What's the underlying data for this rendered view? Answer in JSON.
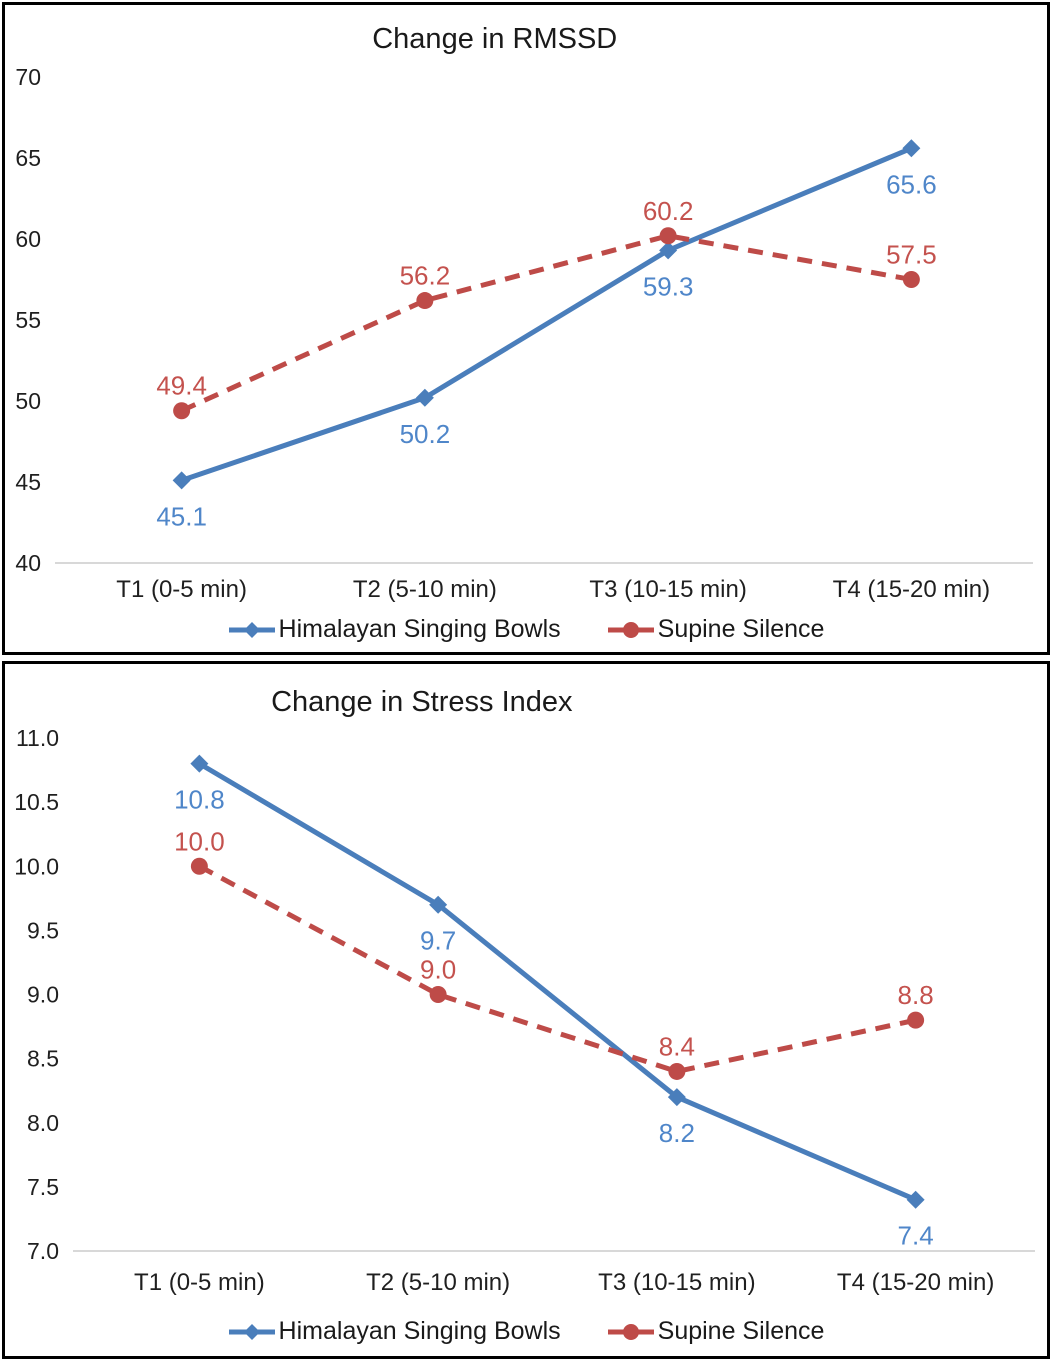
{
  "style": {
    "background": "#FFFFFF",
    "panel_border_color": "#000000",
    "gridline_color": "#D8D8D8",
    "axis_text_color": "#1F1F1F",
    "title_color": "#1A1A1A"
  },
  "chart_data": [
    {
      "type": "line",
      "title": "Change in RMSSD",
      "categories": [
        "T1 (0-5 min)",
        "T2 (5-10 min)",
        "T3 (10-15 min)",
        "T4 (15-20 min)"
      ],
      "series": [
        {
          "name": "Himalayan Singing Bowls",
          "values": [
            45.1,
            50.2,
            59.3,
            65.6
          ],
          "color": "#4A7EBB",
          "label_color": "#4F86C9",
          "marker": "diamond",
          "line_style": "solid",
          "label_position": "below"
        },
        {
          "name": "Supine Silence",
          "values": [
            49.4,
            56.2,
            60.2,
            57.5
          ],
          "color": "#BE4B48",
          "label_color": "#C4524E",
          "marker": "circle",
          "line_style": "dashed",
          "label_position": "above"
        }
      ],
      "ylim": [
        40,
        70
      ],
      "ytick_step": 5,
      "ytick_format": "int",
      "grid": "baseline-only",
      "legend_position": "bottom"
    },
    {
      "type": "line",
      "title": "Change in Stress Index",
      "categories": [
        "T1 (0-5 min)",
        "T2 (5-10 min)",
        "T3 (10-15 min)",
        "T4 (15-20 min)"
      ],
      "series": [
        {
          "name": "Himalayan Singing Bowls",
          "values": [
            10.8,
            9.7,
            8.2,
            7.4
          ],
          "color": "#4A7EBB",
          "label_color": "#4F86C9",
          "marker": "diamond",
          "line_style": "solid",
          "label_position": "below"
        },
        {
          "name": "Supine Silence",
          "values": [
            10.0,
            9.0,
            8.4,
            8.8
          ],
          "color": "#BE4B48",
          "label_color": "#C4524E",
          "marker": "circle",
          "line_style": "dashed",
          "label_position": "above"
        }
      ],
      "ylim": [
        7.0,
        11.0
      ],
      "ytick_step": 0.5,
      "ytick_format": "1dp",
      "grid": "baseline-only",
      "legend_position": "bottom"
    }
  ]
}
